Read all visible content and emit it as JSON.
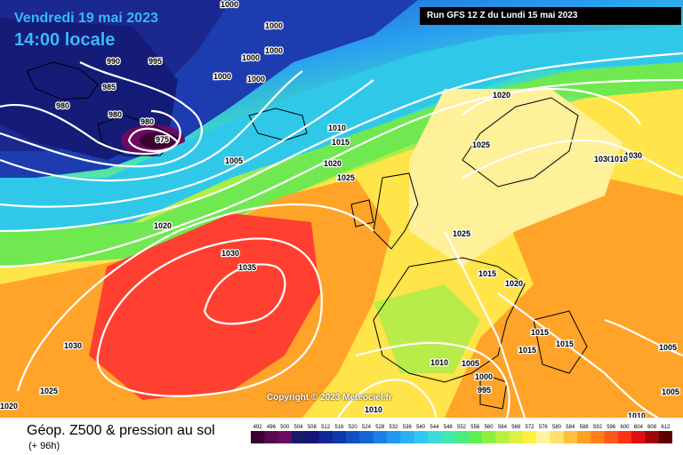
{
  "header": {
    "date": "Vendredi 19 mai 2023",
    "time": "14:00 locale",
    "run": "Run GFS 12 Z du Lundi 15 mai 2023"
  },
  "copyright": "Copyright © 2023 Meteociel.fr",
  "footer": {
    "title": "Géop. Z500 & pression au sol",
    "subtitle": "(+ 96h)"
  },
  "scale": {
    "labels": [
      "492",
      "496",
      "500",
      "504",
      "508",
      "512",
      "516",
      "520",
      "524",
      "528",
      "532",
      "536",
      "540",
      "544",
      "548",
      "552",
      "556",
      "560",
      "564",
      "568",
      "572",
      "576",
      "580",
      "584",
      "588",
      "592",
      "596",
      "600",
      "604",
      "608",
      "612"
    ],
    "colors": [
      "#3a0030",
      "#5a0a4a",
      "#6a0a60",
      "#1a1a6a",
      "#14147a",
      "#102890",
      "#0c3aa8",
      "#1050c0",
      "#1466d4",
      "#1a80e6",
      "#2098f0",
      "#28b0f4",
      "#30c8f0",
      "#38dcd8",
      "#40e8b0",
      "#48ec80",
      "#5cf050",
      "#8cf040",
      "#b8f040",
      "#e0f040",
      "#fff040",
      "#fff4a0",
      "#ffe070",
      "#ffc040",
      "#ffa020",
      "#ff8018",
      "#ff5818",
      "#ff3018",
      "#e01010",
      "#a00808",
      "#600000"
    ]
  },
  "isobars": [
    "1000",
    "1000",
    "1000",
    "1000",
    "1000",
    "1000",
    "990",
    "995",
    "985",
    "980",
    "980",
    "980",
    "975",
    "1005",
    "1010",
    "1015",
    "1020",
    "1025",
    "1020",
    "1025",
    "1030",
    "1035",
    "1030",
    "1025",
    "1020",
    "1020",
    "1025",
    "1025",
    "1015",
    "1020",
    "1015",
    "1015",
    "1015",
    "1010",
    "1005",
    "1000",
    "995",
    "1010",
    "1010",
    "1030",
    "1030",
    "1005",
    "1005",
    "1010"
  ]
}
